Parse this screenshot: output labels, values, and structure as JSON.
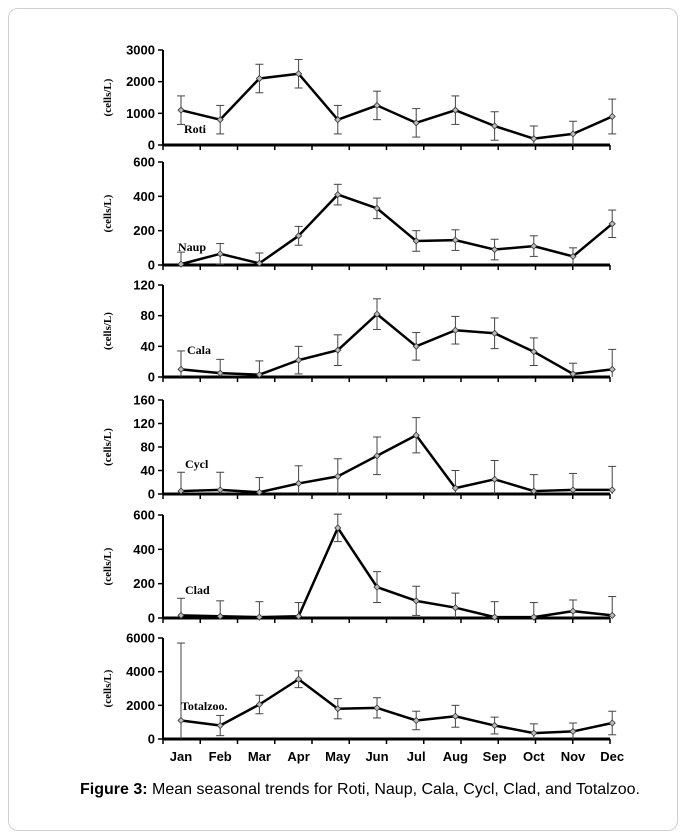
{
  "caption": {
    "label": "Figure 3:",
    "text": "Mean seasonal trends for Roti, Naup, Cala, Cycl, Clad, and Totalzoo."
  },
  "chart_data": [
    {
      "type": "line",
      "series_label": "Roti",
      "ylabel": "(cells/L)",
      "categories": [
        "Jan",
        "Feb",
        "Mar",
        "Apr",
        "May",
        "Jun",
        "Jul",
        "Aug",
        "Sep",
        "Oct",
        "Nov",
        "Dec"
      ],
      "ylim": [
        0,
        3000
      ],
      "yticks": [
        "0",
        "1000",
        "2000",
        "3000"
      ],
      "values": [
        1100,
        800,
        2100,
        2250,
        800,
        1250,
        700,
        1100,
        600,
        200,
        350,
        900
      ],
      "errors": [
        450,
        450,
        450,
        450,
        450,
        450,
        450,
        450,
        450,
        400,
        400,
        550
      ]
    },
    {
      "type": "line",
      "series_label": "Naup",
      "ylabel": "(cells/L)",
      "categories": [
        "Jan",
        "Feb",
        "Mar",
        "Apr",
        "May",
        "Jun",
        "Jul",
        "Aug",
        "Sep",
        "Oct",
        "Nov",
        "Dec"
      ],
      "ylim": [
        0,
        600
      ],
      "yticks": [
        "0",
        "200",
        "400",
        "600"
      ],
      "values": [
        5,
        65,
        10,
        170,
        410,
        330,
        140,
        145,
        90,
        110,
        50,
        240
      ],
      "errors": [
        70,
        60,
        60,
        55,
        60,
        60,
        60,
        60,
        60,
        60,
        50,
        80
      ]
    },
    {
      "type": "line",
      "series_label": "Cala",
      "ylabel": "(cells/L)",
      "categories": [
        "Jan",
        "Feb",
        "Mar",
        "Apr",
        "May",
        "Jun",
        "Jul",
        "Aug",
        "Sep",
        "Oct",
        "Nov",
        "Dec"
      ],
      "ylim": [
        0,
        120
      ],
      "yticks": [
        "0",
        "40",
        "80",
        "120"
      ],
      "values": [
        10,
        5,
        3,
        22,
        35,
        82,
        40,
        61,
        57,
        33,
        4,
        10
      ],
      "errors": [
        24,
        18,
        18,
        18,
        20,
        20,
        18,
        18,
        20,
        18,
        14,
        26
      ]
    },
    {
      "type": "line",
      "series_label": "Cycl",
      "ylabel": "(cells/L)",
      "categories": [
        "Jan",
        "Feb",
        "Mar",
        "Apr",
        "May",
        "Jun",
        "Jul",
        "Aug",
        "Sep",
        "Oct",
        "Nov",
        "Dec"
      ],
      "ylim": [
        0,
        160
      ],
      "yticks": [
        "0",
        "40",
        "80",
        "120",
        "160"
      ],
      "values": [
        5,
        7,
        3,
        18,
        30,
        65,
        100,
        10,
        25,
        5,
        7,
        7
      ],
      "errors": [
        32,
        30,
        25,
        30,
        30,
        32,
        30,
        30,
        32,
        28,
        28,
        40
      ]
    },
    {
      "type": "line",
      "series_label": "Clad",
      "ylabel": "(cells/L)",
      "categories": [
        "Jan",
        "Feb",
        "Mar",
        "Apr",
        "May",
        "Jun",
        "Jul",
        "Aug",
        "Sep",
        "Oct",
        "Nov",
        "Dec"
      ],
      "ylim": [
        0,
        600
      ],
      "yticks": [
        "0",
        "200",
        "400",
        "600"
      ],
      "values": [
        15,
        10,
        5,
        10,
        525,
        180,
        100,
        60,
        5,
        5,
        40,
        15
      ],
      "errors": [
        100,
        90,
        90,
        80,
        80,
        90,
        85,
        85,
        90,
        85,
        65,
        110
      ]
    },
    {
      "type": "line",
      "series_label": "Totalzoo.",
      "ylabel": "(cells/L)",
      "categories": [
        "Jan",
        "Feb",
        "Mar",
        "Apr",
        "May",
        "Jun",
        "Jul",
        "Aug",
        "Sep",
        "Oct",
        "Nov",
        "Dec"
      ],
      "ylim": [
        0,
        6000
      ],
      "yticks": [
        "0",
        "2000",
        "4000",
        "6000"
      ],
      "values": [
        1100,
        800,
        2050,
        3550,
        1800,
        1850,
        1100,
        1350,
        800,
        350,
        450,
        950
      ],
      "errors": [
        4600,
        600,
        550,
        500,
        600,
        600,
        550,
        650,
        500,
        550,
        500,
        700
      ]
    }
  ]
}
